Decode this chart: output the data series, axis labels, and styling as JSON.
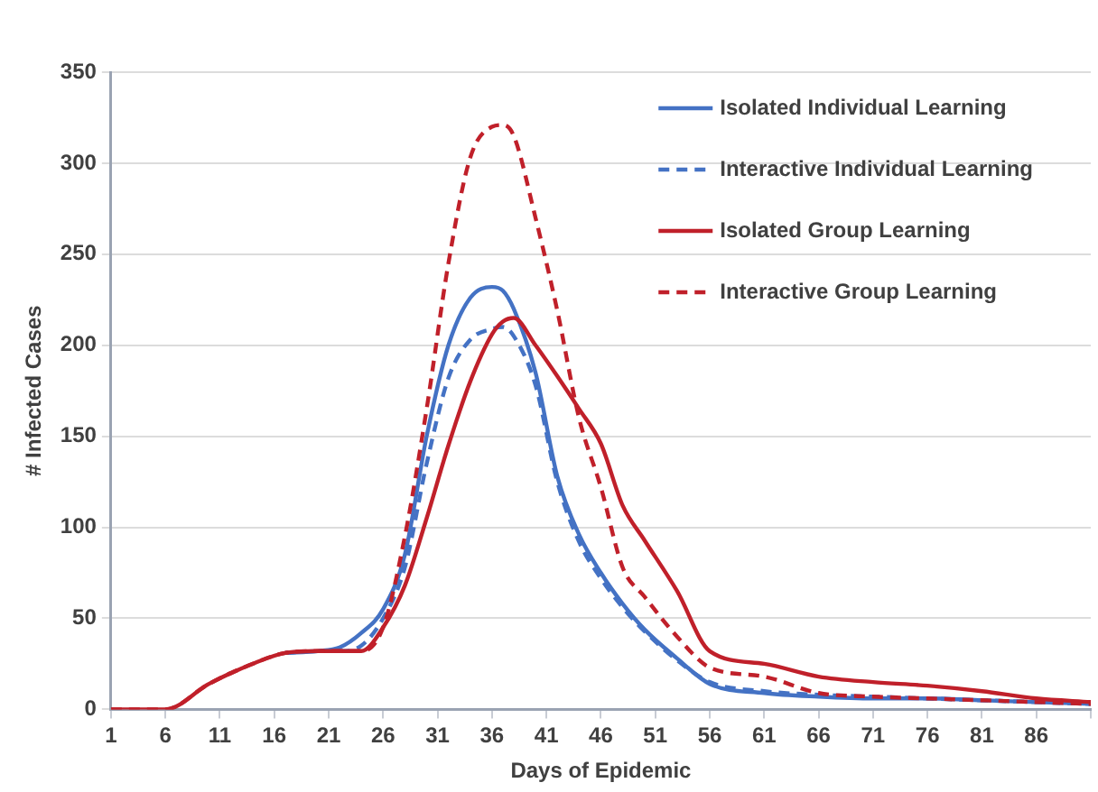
{
  "chart_data": {
    "type": "line",
    "xlabel": "Days of Epidemic",
    "ylabel": "# Infected Cases",
    "x": [
      1,
      6,
      10,
      14,
      17,
      20,
      22,
      24,
      26,
      28,
      30,
      32,
      34,
      36,
      37,
      38,
      40,
      42,
      44,
      46,
      48,
      50,
      53,
      56,
      61,
      66,
      71,
      76,
      81,
      86,
      91
    ],
    "series": [
      {
        "name": "Isolated Individual Learning",
        "color": "#4472c4",
        "line_style": "solid",
        "values": [
          null,
          null,
          null,
          null,
          31,
          32,
          34,
          42,
          55,
          85,
          150,
          200,
          226,
          232,
          230,
          220,
          185,
          128,
          96,
          75,
          58,
          44,
          28,
          14,
          9,
          7,
          6,
          6,
          5,
          4,
          3
        ]
      },
      {
        "name": "Interactive Individual Learning",
        "color": "#4472c4",
        "line_style": "dashed",
        "values": [
          null,
          null,
          null,
          null,
          31,
          32,
          32,
          35,
          50,
          78,
          135,
          182,
          203,
          209,
          210,
          205,
          178,
          125,
          92,
          72,
          56,
          43,
          27,
          15,
          10,
          8,
          7,
          6,
          5,
          4,
          3
        ]
      },
      {
        "name": "Isolated Group Learning",
        "color": "#c0202a",
        "line_style": "solid",
        "values": [
          0,
          0,
          14,
          25,
          31,
          32,
          32,
          32,
          45,
          68,
          105,
          145,
          180,
          206,
          213,
          215,
          200,
          183,
          165,
          146,
          112,
          93,
          65,
          32,
          25,
          18,
          15,
          13,
          10,
          6,
          4
        ]
      },
      {
        "name": "Interactive Group Learning",
        "color": "#c0202a",
        "line_style": "dashed",
        "values": [
          0,
          0,
          14,
          25,
          31,
          32,
          32,
          32,
          45,
          95,
          165,
          245,
          303,
          320,
          321,
          315,
          270,
          219,
          160,
          122,
          78,
          62,
          40,
          23,
          18,
          9,
          7,
          6,
          5,
          4,
          3
        ]
      }
    ],
    "xlim": [
      1,
      91
    ],
    "xticks": [
      1,
      6,
      11,
      16,
      21,
      26,
      31,
      36,
      41,
      46,
      51,
      56,
      61,
      66,
      71,
      76,
      81,
      86,
      {
        "value": 91,
        "label": null
      }
    ],
    "ylim": [
      0,
      350
    ],
    "yticks": [
      0,
      50,
      100,
      150,
      200,
      250,
      300,
      350
    ],
    "grid": "y",
    "legend": "top right",
    "marker": "none"
  }
}
